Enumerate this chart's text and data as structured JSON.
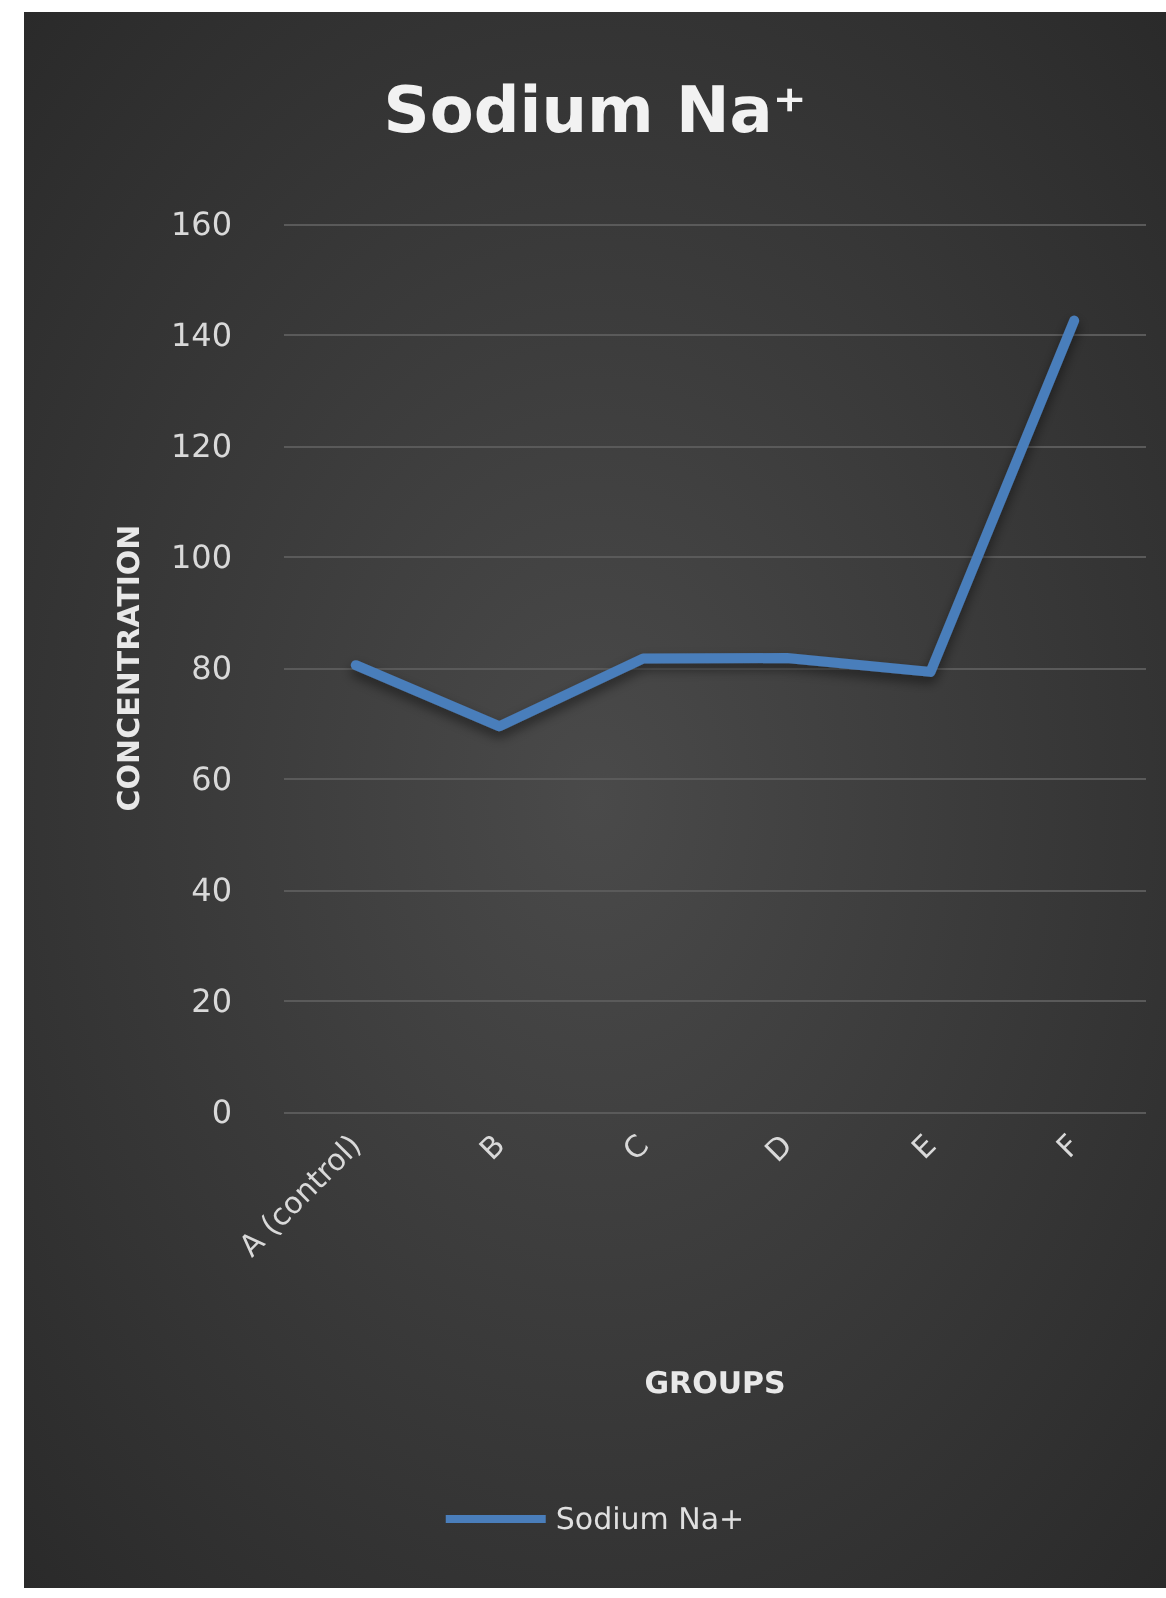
{
  "chart_data": {
    "type": "line",
    "title": "Sodium Na⁺",
    "xlabel": "GROUPS",
    "ylabel": "CONCENTRATION",
    "categories": [
      "A (control)",
      "B",
      "C",
      "D",
      "E",
      "F"
    ],
    "series": [
      {
        "name": "Sodium Na+",
        "color": "#4a7ebb",
        "values": [
          80.5,
          69.5,
          81.7,
          81.8,
          79.3,
          142.6
        ]
      }
    ],
    "ylim": [
      0,
      160
    ],
    "yticks": [
      0,
      20,
      40,
      60,
      80,
      100,
      120,
      140,
      160
    ],
    "grid": "y",
    "legend": "bottom",
    "marker": "none",
    "line_style": "solid"
  }
}
